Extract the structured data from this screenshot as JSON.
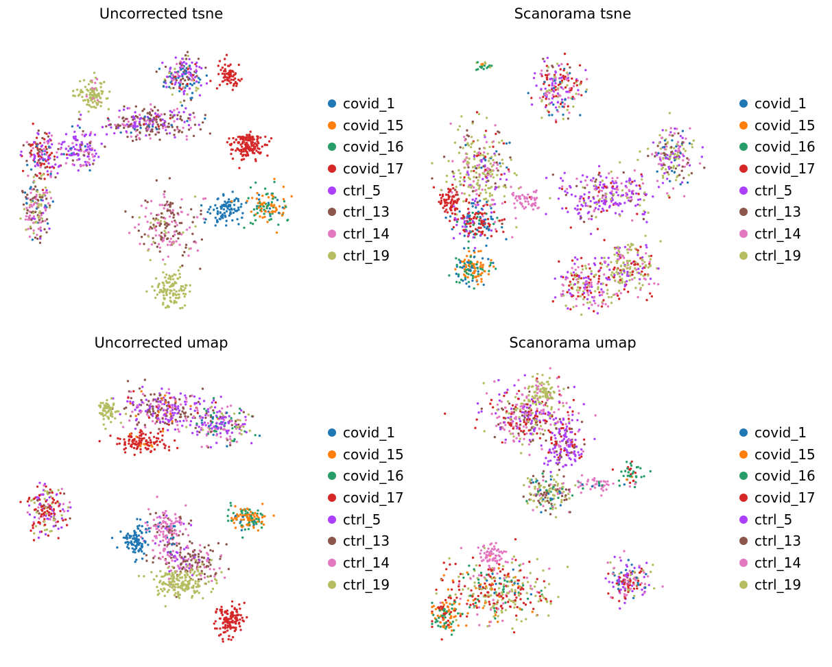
{
  "legend_colors": {
    "covid_1": "#1f77b4",
    "covid_15": "#ff7f0e",
    "covid_16": "#279e68",
    "covid_17": "#d62728",
    "ctrl_5": "#aa40fc",
    "ctrl_13": "#8c564b",
    "ctrl_14": "#e377c2",
    "ctrl_19": "#b5bd61"
  },
  "chart_data": [
    {
      "type": "scatter",
      "title": "Uncorrected tsne",
      "legend_position": "right",
      "grid": false,
      "axes_visible": false,
      "categories": [
        "covid_1",
        "covid_15",
        "covid_16",
        "covid_17",
        "ctrl_5",
        "ctrl_13",
        "ctrl_14",
        "ctrl_19"
      ],
      "clusters": [
        {
          "x": 0.58,
          "y": 0.86,
          "sx": 0.05,
          "sy": 0.05,
          "n": 170,
          "c": [
            [
              4,
              0.35
            ],
            [
              5,
              0.15
            ],
            [
              0,
              0.2
            ],
            [
              3,
              0.1
            ],
            [
              6,
              0.1
            ],
            [
              7,
              0.1
            ]
          ]
        },
        {
          "x": 0.74,
          "y": 0.87,
          "sx": 0.03,
          "sy": 0.035,
          "n": 70,
          "c": [
            [
              3,
              1
            ]
          ]
        },
        {
          "x": 0.26,
          "y": 0.8,
          "sx": 0.04,
          "sy": 0.04,
          "n": 110,
          "c": [
            [
              7,
              0.9
            ],
            [
              6,
              0.1
            ]
          ]
        },
        {
          "x": 0.46,
          "y": 0.7,
          "sx": 0.12,
          "sy": 0.04,
          "n": 250,
          "c": [
            [
              5,
              0.45
            ],
            [
              4,
              0.25
            ],
            [
              6,
              0.2
            ],
            [
              0,
              0.05
            ],
            [
              3,
              0.05
            ]
          ]
        },
        {
          "x": 0.81,
          "y": 0.62,
          "sx": 0.045,
          "sy": 0.04,
          "n": 160,
          "c": [
            [
              3,
              1
            ]
          ]
        },
        {
          "x": 0.08,
          "y": 0.58,
          "sx": 0.05,
          "sy": 0.06,
          "n": 150,
          "c": [
            [
              3,
              0.3
            ],
            [
              4,
              0.3
            ],
            [
              0,
              0.1
            ],
            [
              6,
              0.15
            ],
            [
              5,
              0.15
            ]
          ]
        },
        {
          "x": 0.21,
          "y": 0.6,
          "sx": 0.05,
          "sy": 0.05,
          "n": 120,
          "c": [
            [
              4,
              0.6
            ],
            [
              6,
              0.2
            ],
            [
              0,
              0.1
            ],
            [
              5,
              0.1
            ]
          ]
        },
        {
          "x": 0.06,
          "y": 0.4,
          "sx": 0.04,
          "sy": 0.08,
          "n": 160,
          "c": [
            [
              5,
              0.3
            ],
            [
              6,
              0.3
            ],
            [
              7,
              0.2
            ],
            [
              0,
              0.1
            ],
            [
              4,
              0.1
            ]
          ]
        },
        {
          "x": 0.52,
          "y": 0.33,
          "sx": 0.08,
          "sy": 0.08,
          "n": 180,
          "c": [
            [
              5,
              0.5
            ],
            [
              6,
              0.4
            ],
            [
              7,
              0.1
            ]
          ]
        },
        {
          "x": 0.73,
          "y": 0.39,
          "sx": 0.04,
          "sy": 0.04,
          "n": 90,
          "c": [
            [
              0,
              1
            ]
          ]
        },
        {
          "x": 0.88,
          "y": 0.4,
          "sx": 0.05,
          "sy": 0.05,
          "n": 110,
          "c": [
            [
              1,
              0.5
            ],
            [
              2,
              0.4
            ],
            [
              0,
              0.1
            ]
          ]
        },
        {
          "x": 0.54,
          "y": 0.1,
          "sx": 0.05,
          "sy": 0.04,
          "n": 110,
          "c": [
            [
              7,
              1
            ]
          ]
        }
      ]
    },
    {
      "type": "scatter",
      "title": "Scanorama tsne",
      "legend_position": "right",
      "grid": false,
      "axes_visible": false,
      "categories": [
        "covid_1",
        "covid_15",
        "covid_16",
        "covid_17",
        "ctrl_5",
        "ctrl_13",
        "ctrl_14",
        "ctrl_19"
      ],
      "clusters": [
        {
          "x": 0.45,
          "y": 0.82,
          "sx": 0.06,
          "sy": 0.07,
          "n": 190,
          "c": [
            [
              4,
              0.3
            ],
            [
              3,
              0.2
            ],
            [
              6,
              0.2
            ],
            [
              7,
              0.15
            ],
            [
              0,
              0.1
            ],
            [
              5,
              0.05
            ]
          ]
        },
        {
          "x": 0.18,
          "y": 0.9,
          "sx": 0.02,
          "sy": 0.015,
          "n": 20,
          "c": [
            [
              2,
              0.6
            ],
            [
              7,
              0.2
            ],
            [
              1,
              0.2
            ]
          ]
        },
        {
          "x": 0.86,
          "y": 0.58,
          "sx": 0.06,
          "sy": 0.07,
          "n": 170,
          "c": [
            [
              7,
              0.3
            ],
            [
              6,
              0.25
            ],
            [
              4,
              0.2
            ],
            [
              5,
              0.15
            ],
            [
              0,
              0.1
            ]
          ]
        },
        {
          "x": 0.63,
          "y": 0.44,
          "sx": 0.12,
          "sy": 0.06,
          "n": 260,
          "c": [
            [
              4,
              0.5
            ],
            [
              6,
              0.2
            ],
            [
              3,
              0.1
            ],
            [
              7,
              0.1
            ],
            [
              5,
              0.1
            ]
          ]
        },
        {
          "x": 0.17,
          "y": 0.52,
          "sx": 0.08,
          "sy": 0.12,
          "n": 300,
          "c": [
            [
              7,
              0.4
            ],
            [
              6,
              0.2
            ],
            [
              3,
              0.15
            ],
            [
              4,
              0.1
            ],
            [
              5,
              0.1
            ],
            [
              0,
              0.05
            ]
          ]
        },
        {
          "x": 0.06,
          "y": 0.42,
          "sx": 0.03,
          "sy": 0.04,
          "n": 70,
          "c": [
            [
              3,
              1
            ]
          ]
        },
        {
          "x": 0.15,
          "y": 0.34,
          "sx": 0.06,
          "sy": 0.05,
          "n": 150,
          "c": [
            [
              0,
              0.35
            ],
            [
              3,
              0.4
            ],
            [
              2,
              0.1
            ],
            [
              4,
              0.15
            ]
          ]
        },
        {
          "x": 0.14,
          "y": 0.18,
          "sx": 0.05,
          "sy": 0.04,
          "n": 130,
          "c": [
            [
              1,
              0.5
            ],
            [
              2,
              0.3
            ],
            [
              0,
              0.2
            ]
          ]
        },
        {
          "x": 0.55,
          "y": 0.12,
          "sx": 0.08,
          "sy": 0.06,
          "n": 180,
          "c": [
            [
              6,
              0.3
            ],
            [
              3,
              0.25
            ],
            [
              4,
              0.2
            ],
            [
              7,
              0.25
            ]
          ]
        },
        {
          "x": 0.7,
          "y": 0.18,
          "sx": 0.07,
          "sy": 0.07,
          "n": 200,
          "c": [
            [
              7,
              0.6
            ],
            [
              3,
              0.15
            ],
            [
              6,
              0.1
            ],
            [
              4,
              0.15
            ]
          ]
        },
        {
          "x": 0.33,
          "y": 0.42,
          "sx": 0.04,
          "sy": 0.025,
          "n": 50,
          "c": [
            [
              6,
              1
            ]
          ]
        }
      ]
    },
    {
      "type": "scatter",
      "title": "Uncorrected umap",
      "legend_position": "right",
      "grid": false,
      "axes_visible": false,
      "categories": [
        "covid_1",
        "covid_15",
        "covid_16",
        "covid_17",
        "ctrl_5",
        "ctrl_13",
        "ctrl_14",
        "ctrl_19"
      ],
      "clusters": [
        {
          "x": 0.5,
          "y": 0.85,
          "sx": 0.1,
          "sy": 0.05,
          "n": 260,
          "c": [
            [
              4,
              0.4
            ],
            [
              5,
              0.3
            ],
            [
              6,
              0.2
            ],
            [
              1,
              0.05
            ],
            [
              3,
              0.05
            ]
          ]
        },
        {
          "x": 0.71,
          "y": 0.8,
          "sx": 0.08,
          "sy": 0.05,
          "n": 200,
          "c": [
            [
              4,
              0.35
            ],
            [
              6,
              0.2
            ],
            [
              5,
              0.15
            ],
            [
              0,
              0.1
            ],
            [
              2,
              0.1
            ],
            [
              7,
              0.1
            ]
          ]
        },
        {
          "x": 0.43,
          "y": 0.73,
          "sx": 0.06,
          "sy": 0.03,
          "n": 120,
          "c": [
            [
              3,
              0.9
            ],
            [
              1,
              0.1
            ]
          ]
        },
        {
          "x": 0.31,
          "y": 0.84,
          "sx": 0.03,
          "sy": 0.03,
          "n": 60,
          "c": [
            [
              7,
              1
            ]
          ]
        },
        {
          "x": 0.09,
          "y": 0.5,
          "sx": 0.05,
          "sy": 0.06,
          "n": 170,
          "c": [
            [
              3,
              0.4
            ],
            [
              4,
              0.25
            ],
            [
              7,
              0.15
            ],
            [
              6,
              0.1
            ],
            [
              5,
              0.1
            ]
          ]
        },
        {
          "x": 0.52,
          "y": 0.42,
          "sx": 0.06,
          "sy": 0.05,
          "n": 150,
          "c": [
            [
              6,
              0.6
            ],
            [
              5,
              0.2
            ],
            [
              0,
              0.1
            ],
            [
              4,
              0.1
            ]
          ]
        },
        {
          "x": 0.81,
          "y": 0.46,
          "sx": 0.05,
          "sy": 0.035,
          "n": 120,
          "c": [
            [
              1,
              0.45
            ],
            [
              2,
              0.45
            ],
            [
              0,
              0.1
            ]
          ]
        },
        {
          "x": 0.41,
          "y": 0.38,
          "sx": 0.035,
          "sy": 0.04,
          "n": 100,
          "c": [
            [
              0,
              1
            ]
          ]
        },
        {
          "x": 0.6,
          "y": 0.31,
          "sx": 0.08,
          "sy": 0.05,
          "n": 180,
          "c": [
            [
              5,
              0.5
            ],
            [
              6,
              0.4
            ],
            [
              4,
              0.1
            ]
          ]
        },
        {
          "x": 0.57,
          "y": 0.23,
          "sx": 0.08,
          "sy": 0.04,
          "n": 180,
          "c": [
            [
              7,
              1
            ]
          ]
        },
        {
          "x": 0.74,
          "y": 0.1,
          "sx": 0.04,
          "sy": 0.04,
          "n": 130,
          "c": [
            [
              3,
              1
            ]
          ]
        }
      ]
    },
    {
      "type": "scatter",
      "title": "Scanorama umap",
      "legend_position": "right",
      "grid": false,
      "axes_visible": false,
      "categories": [
        "covid_1",
        "covid_15",
        "covid_16",
        "covid_17",
        "ctrl_5",
        "ctrl_13",
        "ctrl_14",
        "ctrl_19"
      ],
      "clusters": [
        {
          "x": 0.35,
          "y": 0.82,
          "sx": 0.12,
          "sy": 0.07,
          "n": 320,
          "c": [
            [
              6,
              0.3
            ],
            [
              4,
              0.25
            ],
            [
              3,
              0.2
            ],
            [
              7,
              0.15
            ],
            [
              5,
              0.1
            ]
          ]
        },
        {
          "x": 0.39,
          "y": 0.91,
          "sx": 0.04,
          "sy": 0.04,
          "n": 90,
          "c": [
            [
              7,
              0.8
            ],
            [
              6,
              0.2
            ]
          ]
        },
        {
          "x": 0.47,
          "y": 0.72,
          "sx": 0.05,
          "sy": 0.06,
          "n": 150,
          "c": [
            [
              4,
              0.6
            ],
            [
              3,
              0.15
            ],
            [
              6,
              0.15
            ],
            [
              5,
              0.1
            ]
          ]
        },
        {
          "x": 0.41,
          "y": 0.55,
          "sx": 0.06,
          "sy": 0.05,
          "n": 160,
          "c": [
            [
              7,
              0.45
            ],
            [
              5,
              0.2
            ],
            [
              6,
              0.15
            ],
            [
              0,
              0.1
            ],
            [
              2,
              0.1
            ]
          ]
        },
        {
          "x": 0.6,
          "y": 0.58,
          "sx": 0.07,
          "sy": 0.02,
          "n": 50,
          "c": [
            [
              6,
              0.7
            ],
            [
              0,
              0.15
            ],
            [
              2,
              0.15
            ]
          ]
        },
        {
          "x": 0.71,
          "y": 0.62,
          "sx": 0.03,
          "sy": 0.03,
          "n": 40,
          "c": [
            [
              2,
              0.6
            ],
            [
              3,
              0.25
            ],
            [
              1,
              0.15
            ]
          ]
        },
        {
          "x": 0.23,
          "y": 0.2,
          "sx": 0.14,
          "sy": 0.08,
          "n": 360,
          "c": [
            [
              7,
              0.35
            ],
            [
              3,
              0.3
            ],
            [
              6,
              0.1
            ],
            [
              2,
              0.1
            ],
            [
              1,
              0.1
            ],
            [
              0,
              0.05
            ]
          ]
        },
        {
          "x": 0.05,
          "y": 0.12,
          "sx": 0.04,
          "sy": 0.05,
          "n": 100,
          "c": [
            [
              1,
              0.45
            ],
            [
              2,
              0.35
            ],
            [
              3,
              0.2
            ]
          ]
        },
        {
          "x": 0.21,
          "y": 0.33,
          "sx": 0.04,
          "sy": 0.03,
          "n": 60,
          "c": [
            [
              6,
              1
            ]
          ]
        },
        {
          "x": 0.7,
          "y": 0.24,
          "sx": 0.06,
          "sy": 0.05,
          "n": 160,
          "c": [
            [
              3,
              0.3
            ],
            [
              4,
              0.3
            ],
            [
              6,
              0.15
            ],
            [
              7,
              0.15
            ],
            [
              0,
              0.1
            ]
          ]
        }
      ]
    }
  ]
}
